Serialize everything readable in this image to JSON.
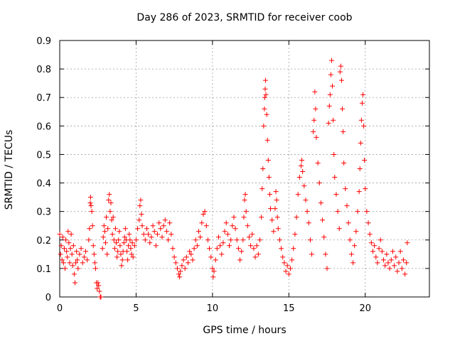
{
  "chart_data": {
    "type": "scatter",
    "title": "Day 286 of 2023, SRMTID for receiver coob",
    "xlabel": "GPS time / hours",
    "ylabel": "SRMTID / TECUs",
    "xlim": [
      0,
      24.2
    ],
    "ylim": [
      0,
      0.9
    ],
    "xticks": [
      0,
      5,
      10,
      15,
      20
    ],
    "yticks": [
      0,
      0.1,
      0.2,
      0.3,
      0.4,
      0.5,
      0.6,
      0.7,
      0.8,
      0.9
    ],
    "grid": true,
    "marker": "+",
    "color": "#ff0000",
    "series": [
      {
        "name": "SRMTID",
        "points": [
          [
            0.0,
            0.22
          ],
          [
            0.05,
            0.15
          ],
          [
            0.1,
            0.18
          ],
          [
            0.15,
            0.13
          ],
          [
            0.2,
            0.21
          ],
          [
            0.25,
            0.12
          ],
          [
            0.3,
            0.17
          ],
          [
            0.35,
            0.1
          ],
          [
            0.4,
            0.2
          ],
          [
            0.45,
            0.16
          ],
          [
            0.5,
            0.14
          ],
          [
            0.55,
            0.23
          ],
          [
            0.6,
            0.19
          ],
          [
            0.65,
            0.12
          ],
          [
            0.7,
            0.17
          ],
          [
            0.75,
            0.22
          ],
          [
            0.8,
            0.15
          ],
          [
            0.85,
            0.11
          ],
          [
            0.9,
            0.18
          ],
          [
            0.95,
            0.08
          ],
          [
            1.0,
            0.05
          ],
          [
            1.05,
            0.12
          ],
          [
            1.1,
            0.16
          ],
          [
            1.15,
            0.13
          ],
          [
            1.2,
            0.1
          ],
          [
            1.3,
            0.15
          ],
          [
            1.4,
            0.17
          ],
          [
            1.5,
            0.12
          ],
          [
            1.6,
            0.14
          ],
          [
            1.7,
            0.16
          ],
          [
            1.8,
            0.13
          ],
          [
            1.9,
            0.2
          ],
          [
            1.95,
            0.24
          ],
          [
            2.0,
            0.33
          ],
          [
            2.02,
            0.35
          ],
          [
            2.05,
            0.32
          ],
          [
            2.1,
            0.3
          ],
          [
            2.15,
            0.25
          ],
          [
            2.2,
            0.18
          ],
          [
            2.25,
            0.15
          ],
          [
            2.3,
            0.12
          ],
          [
            2.35,
            0.1
          ],
          [
            2.4,
            0.05
          ],
          [
            2.45,
            0.03
          ],
          [
            2.5,
            0.05
          ],
          [
            2.55,
            0.04
          ],
          [
            2.6,
            0.02
          ],
          [
            2.65,
            0.0
          ],
          [
            2.7,
            0.0
          ],
          [
            2.8,
            0.17
          ],
          [
            2.85,
            0.21
          ],
          [
            2.9,
            0.25
          ],
          [
            2.95,
            0.23
          ],
          [
            3.0,
            0.19
          ],
          [
            3.05,
            0.28
          ],
          [
            3.1,
            0.15
          ],
          [
            3.15,
            0.24
          ],
          [
            3.2,
            0.34
          ],
          [
            3.25,
            0.36
          ],
          [
            3.3,
            0.3
          ],
          [
            3.35,
            0.33
          ],
          [
            3.4,
            0.27
          ],
          [
            3.45,
            0.22
          ],
          [
            3.5,
            0.28
          ],
          [
            3.55,
            0.2
          ],
          [
            3.6,
            0.17
          ],
          [
            3.65,
            0.24
          ],
          [
            3.7,
            0.19
          ],
          [
            3.75,
            0.14
          ],
          [
            3.8,
            0.16
          ],
          [
            3.85,
            0.2
          ],
          [
            3.9,
            0.23
          ],
          [
            3.95,
            0.18
          ],
          [
            4.0,
            0.15
          ],
          [
            4.05,
            0.11
          ],
          [
            4.1,
            0.13
          ],
          [
            4.15,
            0.16
          ],
          [
            4.2,
            0.19
          ],
          [
            4.25,
            0.21
          ],
          [
            4.3,
            0.24
          ],
          [
            4.35,
            0.2
          ],
          [
            4.4,
            0.16
          ],
          [
            4.45,
            0.13
          ],
          [
            4.5,
            0.18
          ],
          [
            4.55,
            0.22
          ],
          [
            4.6,
            0.2
          ],
          [
            4.65,
            0.17
          ],
          [
            4.7,
            0.15
          ],
          [
            4.75,
            0.19
          ],
          [
            4.8,
            0.14
          ],
          [
            4.9,
            0.18
          ],
          [
            5.0,
            0.2
          ],
          [
            5.1,
            0.24
          ],
          [
            5.2,
            0.27
          ],
          [
            5.25,
            0.32
          ],
          [
            5.3,
            0.34
          ],
          [
            5.35,
            0.29
          ],
          [
            5.4,
            0.25
          ],
          [
            5.5,
            0.22
          ],
          [
            5.6,
            0.2
          ],
          [
            5.7,
            0.24
          ],
          [
            5.8,
            0.22
          ],
          [
            5.9,
            0.19
          ],
          [
            6.0,
            0.21
          ],
          [
            6.1,
            0.25
          ],
          [
            6.2,
            0.23
          ],
          [
            6.3,
            0.18
          ],
          [
            6.4,
            0.22
          ],
          [
            6.5,
            0.26
          ],
          [
            6.6,
            0.24
          ],
          [
            6.7,
            0.21
          ],
          [
            6.8,
            0.25
          ],
          [
            6.9,
            0.27
          ],
          [
            7.0,
            0.23
          ],
          [
            7.1,
            0.2
          ],
          [
            7.2,
            0.26
          ],
          [
            7.3,
            0.22
          ],
          [
            7.4,
            0.17
          ],
          [
            7.5,
            0.14
          ],
          [
            7.6,
            0.12
          ],
          [
            7.7,
            0.1
          ],
          [
            7.8,
            0.08
          ],
          [
            7.85,
            0.07
          ],
          [
            7.9,
            0.09
          ],
          [
            8.0,
            0.11
          ],
          [
            8.1,
            0.13
          ],
          [
            8.2,
            0.1
          ],
          [
            8.3,
            0.14
          ],
          [
            8.4,
            0.12
          ],
          [
            8.5,
            0.16
          ],
          [
            8.6,
            0.15
          ],
          [
            8.7,
            0.13
          ],
          [
            8.8,
            0.17
          ],
          [
            8.9,
            0.2
          ],
          [
            9.0,
            0.18
          ],
          [
            9.1,
            0.23
          ],
          [
            9.2,
            0.21
          ],
          [
            9.3,
            0.26
          ],
          [
            9.4,
            0.29
          ],
          [
            9.5,
            0.3
          ],
          [
            9.6,
            0.25
          ],
          [
            9.7,
            0.2
          ],
          [
            9.8,
            0.17
          ],
          [
            9.9,
            0.14
          ],
          [
            10.0,
            0.1
          ],
          [
            10.05,
            0.07
          ],
          [
            10.1,
            0.09
          ],
          [
            10.2,
            0.13
          ],
          [
            10.3,
            0.17
          ],
          [
            10.4,
            0.21
          ],
          [
            10.5,
            0.18
          ],
          [
            10.6,
            0.15
          ],
          [
            10.7,
            0.19
          ],
          [
            10.8,
            0.23
          ],
          [
            10.9,
            0.26
          ],
          [
            11.0,
            0.22
          ],
          [
            11.1,
            0.18
          ],
          [
            11.2,
            0.2
          ],
          [
            11.3,
            0.25
          ],
          [
            11.4,
            0.28
          ],
          [
            11.5,
            0.24
          ],
          [
            11.6,
            0.2
          ],
          [
            11.7,
            0.17
          ],
          [
            11.8,
            0.13
          ],
          [
            11.9,
            0.16
          ],
          [
            12.0,
            0.2
          ],
          [
            12.05,
            0.28
          ],
          [
            12.1,
            0.34
          ],
          [
            12.15,
            0.36
          ],
          [
            12.2,
            0.3
          ],
          [
            12.3,
            0.25
          ],
          [
            12.4,
            0.21
          ],
          [
            12.5,
            0.18
          ],
          [
            12.6,
            0.22
          ],
          [
            12.7,
            0.17
          ],
          [
            12.8,
            0.14
          ],
          [
            12.9,
            0.18
          ],
          [
            13.0,
            0.15
          ],
          [
            13.1,
            0.2
          ],
          [
            13.2,
            0.28
          ],
          [
            13.25,
            0.38
          ],
          [
            13.3,
            0.45
          ],
          [
            13.35,
            0.6
          ],
          [
            13.4,
            0.66
          ],
          [
            13.42,
            0.7
          ],
          [
            13.45,
            0.73
          ],
          [
            13.47,
            0.76
          ],
          [
            13.5,
            0.71
          ],
          [
            13.55,
            0.64
          ],
          [
            13.6,
            0.55
          ],
          [
            13.65,
            0.48
          ],
          [
            13.7,
            0.42
          ],
          [
            13.75,
            0.36
          ],
          [
            13.8,
            0.31
          ],
          [
            13.9,
            0.27
          ],
          [
            14.0,
            0.23
          ],
          [
            14.1,
            0.31
          ],
          [
            14.15,
            0.37
          ],
          [
            14.2,
            0.34
          ],
          [
            14.25,
            0.28
          ],
          [
            14.3,
            0.24
          ],
          [
            14.4,
            0.2
          ],
          [
            14.5,
            0.17
          ],
          [
            14.6,
            0.14
          ],
          [
            14.7,
            0.12
          ],
          [
            14.8,
            0.09
          ],
          [
            14.9,
            0.11
          ],
          [
            15.0,
            0.08
          ],
          [
            15.1,
            0.1
          ],
          [
            15.2,
            0.13
          ],
          [
            15.3,
            0.17
          ],
          [
            15.4,
            0.22
          ],
          [
            15.5,
            0.28
          ],
          [
            15.6,
            0.36
          ],
          [
            15.7,
            0.42
          ],
          [
            15.8,
            0.46
          ],
          [
            15.85,
            0.48
          ],
          [
            15.9,
            0.44
          ],
          [
            16.0,
            0.39
          ],
          [
            16.1,
            0.34
          ],
          [
            16.2,
            0.3
          ],
          [
            16.3,
            0.26
          ],
          [
            16.4,
            0.2
          ],
          [
            16.5,
            0.15
          ],
          [
            16.6,
            0.58
          ],
          [
            16.65,
            0.62
          ],
          [
            16.7,
            0.72
          ],
          [
            16.75,
            0.66
          ],
          [
            16.8,
            0.56
          ],
          [
            16.9,
            0.47
          ],
          [
            17.0,
            0.4
          ],
          [
            17.1,
            0.33
          ],
          [
            17.2,
            0.27
          ],
          [
            17.3,
            0.21
          ],
          [
            17.4,
            0.15
          ],
          [
            17.5,
            0.1
          ],
          [
            17.6,
            0.61
          ],
          [
            17.65,
            0.67
          ],
          [
            17.7,
            0.71
          ],
          [
            17.75,
            0.78
          ],
          [
            17.8,
            0.83
          ],
          [
            17.85,
            0.74
          ],
          [
            17.9,
            0.62
          ],
          [
            17.95,
            0.5
          ],
          [
            18.0,
            0.42
          ],
          [
            18.1,
            0.36
          ],
          [
            18.2,
            0.3
          ],
          [
            18.3,
            0.24
          ],
          [
            18.35,
            0.79
          ],
          [
            18.4,
            0.81
          ],
          [
            18.45,
            0.76
          ],
          [
            18.5,
            0.66
          ],
          [
            18.55,
            0.58
          ],
          [
            18.6,
            0.47
          ],
          [
            18.7,
            0.38
          ],
          [
            18.8,
            0.32
          ],
          [
            18.9,
            0.26
          ],
          [
            19.0,
            0.2
          ],
          [
            19.1,
            0.15
          ],
          [
            19.2,
            0.12
          ],
          [
            19.3,
            0.18
          ],
          [
            19.4,
            0.23
          ],
          [
            19.5,
            0.3
          ],
          [
            19.6,
            0.37
          ],
          [
            19.65,
            0.45
          ],
          [
            19.7,
            0.54
          ],
          [
            19.75,
            0.62
          ],
          [
            19.8,
            0.68
          ],
          [
            19.85,
            0.71
          ],
          [
            19.9,
            0.6
          ],
          [
            19.95,
            0.48
          ],
          [
            20.0,
            0.38
          ],
          [
            20.1,
            0.3
          ],
          [
            20.2,
            0.26
          ],
          [
            20.3,
            0.22
          ],
          [
            20.4,
            0.19
          ],
          [
            20.5,
            0.16
          ],
          [
            20.6,
            0.18
          ],
          [
            20.7,
            0.14
          ],
          [
            20.8,
            0.12
          ],
          [
            20.9,
            0.17
          ],
          [
            21.0,
            0.2
          ],
          [
            21.1,
            0.16
          ],
          [
            21.2,
            0.13
          ],
          [
            21.3,
            0.11
          ],
          [
            21.4,
            0.15
          ],
          [
            21.5,
            0.12
          ],
          [
            21.6,
            0.1
          ],
          [
            21.7,
            0.13
          ],
          [
            21.8,
            0.16
          ],
          [
            21.9,
            0.11
          ],
          [
            22.0,
            0.14
          ],
          [
            22.1,
            0.09
          ],
          [
            22.2,
            0.12
          ],
          [
            22.3,
            0.16
          ],
          [
            22.4,
            0.1
          ],
          [
            22.5,
            0.13
          ],
          [
            22.6,
            0.08
          ],
          [
            22.7,
            0.12
          ],
          [
            22.75,
            0.19
          ]
        ]
      }
    ]
  }
}
